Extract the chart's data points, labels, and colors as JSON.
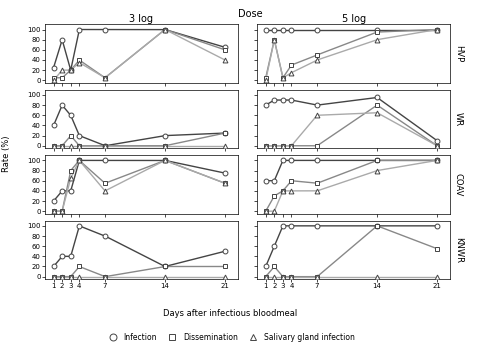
{
  "title": "Dose",
  "col_labels": [
    "3 log",
    "5 log"
  ],
  "row_labels": [
    "HVP",
    "WR",
    "COAV",
    "KNWR"
  ],
  "xlabel": "Days after infectious bloodmeal",
  "ylabel": "Rate (%)",
  "days": [
    1,
    2,
    3,
    4,
    7,
    14,
    21
  ],
  "ylim": [
    -5,
    110
  ],
  "yticks": [
    0,
    20,
    40,
    60,
    80,
    100
  ],
  "data": {
    "HVP": {
      "3log": {
        "infection": [
          25,
          80,
          20,
          100,
          100,
          100,
          65
        ],
        "dissemination": [
          5,
          5,
          20,
          40,
          5,
          100,
          60
        ],
        "salivary": [
          0,
          20,
          20,
          35,
          5,
          100,
          40
        ]
      },
      "5log": {
        "infection": [
          100,
          100,
          100,
          100,
          100,
          100,
          100
        ],
        "dissemination": [
          5,
          80,
          5,
          30,
          50,
          95,
          100
        ],
        "salivary": [
          0,
          80,
          5,
          15,
          40,
          80,
          100
        ]
      }
    },
    "WR": {
      "3log": {
        "infection": [
          40,
          80,
          60,
          20,
          0,
          20,
          25
        ],
        "dissemination": [
          0,
          0,
          20,
          0,
          0,
          0,
          25
        ],
        "salivary": [
          0,
          0,
          0,
          0,
          0,
          0,
          0
        ]
      },
      "5log": {
        "infection": [
          80,
          90,
          90,
          90,
          80,
          95,
          10
        ],
        "dissemination": [
          0,
          0,
          0,
          0,
          0,
          80,
          0
        ],
        "salivary": [
          0,
          0,
          0,
          0,
          60,
          65,
          0
        ]
      }
    },
    "COAV": {
      "3log": {
        "infection": [
          20,
          40,
          40,
          100,
          100,
          100,
          75
        ],
        "dissemination": [
          0,
          0,
          80,
          100,
          55,
          100,
          55
        ],
        "salivary": [
          0,
          0,
          65,
          100,
          40,
          100,
          55
        ]
      },
      "5log": {
        "infection": [
          60,
          60,
          100,
          100,
          100,
          100,
          100
        ],
        "dissemination": [
          0,
          30,
          40,
          60,
          55,
          100,
          100
        ],
        "salivary": [
          0,
          0,
          40,
          40,
          40,
          80,
          100
        ]
      }
    },
    "KNWR": {
      "3log": {
        "infection": [
          20,
          40,
          40,
          100,
          80,
          20,
          50
        ],
        "dissemination": [
          0,
          0,
          0,
          20,
          0,
          20,
          20
        ],
        "salivary": [
          0,
          0,
          0,
          0,
          0,
          0,
          0
        ]
      },
      "5log": {
        "infection": [
          20,
          60,
          100,
          100,
          100,
          100,
          100
        ],
        "dissemination": [
          0,
          20,
          0,
          0,
          0,
          100,
          55
        ],
        "salivary": [
          0,
          0,
          0,
          0,
          0,
          0,
          0
        ]
      }
    }
  },
  "line_colors": {
    "infection": "#444444",
    "dissemination": "#888888",
    "salivary": "#aaaaaa"
  },
  "marker_styles": {
    "infection": "o",
    "dissemination": "s",
    "salivary": "^"
  },
  "marker_size": 3.5,
  "line_width": 1.0,
  "background_color": "#ffffff"
}
